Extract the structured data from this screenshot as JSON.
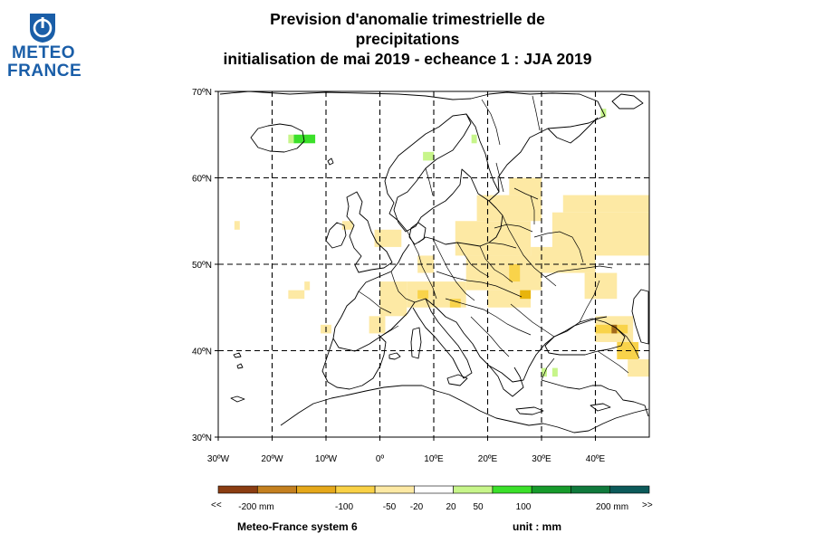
{
  "logo": {
    "line1": "METEO",
    "line2": "FRANCE",
    "icon": "meteo-france-logo-icon"
  },
  "title": {
    "line1": "Prevision d'anomalie trimestrielle de",
    "line2": "precipitations",
    "line3": "initialisation de mai 2019  -  echeance 1 : JJA 2019"
  },
  "map": {
    "lon_range": [
      -30,
      50
    ],
    "lat_range": [
      30,
      70
    ],
    "grid_lon": [
      -20,
      -10,
      0,
      10,
      20,
      30,
      40
    ],
    "grid_lat": [
      40,
      50,
      60
    ],
    "x_ticks": [
      "30ºW",
      "20ºW",
      "10ºW",
      "0º",
      "10ºE",
      "20ºE",
      "30ºE",
      "40ºE"
    ],
    "y_ticks": [
      "70ºN",
      "60ºN",
      "50ºN",
      "40ºN",
      "30ºN"
    ],
    "colors": {
      "light_yellow": "#fde9a4",
      "yellow": "#f9d34a",
      "gold": "#e8b40c",
      "brown": "#a36b1b",
      "light_green": "#c7f58a",
      "green": "#3be02a"
    },
    "anomaly_boxes": [
      {
        "lon": [
          -16,
          -12
        ],
        "lat": [
          64,
          65
        ],
        "level": "green"
      },
      {
        "lon": [
          -17,
          -16
        ],
        "lat": [
          64,
          65
        ],
        "level": "light_green"
      },
      {
        "lon": [
          8,
          10
        ],
        "lat": [
          62,
          63
        ],
        "level": "light_green"
      },
      {
        "lon": [
          17,
          18
        ],
        "lat": [
          64,
          65
        ],
        "level": "light_green"
      },
      {
        "lon": [
          41,
          42
        ],
        "lat": [
          67,
          68
        ],
        "level": "light_green"
      },
      {
        "lon": [
          30,
          31
        ],
        "lat": [
          37,
          38
        ],
        "level": "light_green"
      },
      {
        "lon": [
          32,
          33
        ],
        "lat": [
          37,
          38
        ],
        "level": "light_green"
      },
      {
        "lon": [
          14,
          28
        ],
        "lat": [
          51,
          55
        ],
        "level": "light_yellow"
      },
      {
        "lon": [
          18,
          30
        ],
        "lat": [
          55,
          58
        ],
        "level": "light_yellow"
      },
      {
        "lon": [
          24,
          30
        ],
        "lat": [
          58,
          60
        ],
        "level": "light_yellow"
      },
      {
        "lon": [
          32,
          50
        ],
        "lat": [
          51,
          56
        ],
        "level": "light_yellow"
      },
      {
        "lon": [
          34,
          50
        ],
        "lat": [
          56,
          58
        ],
        "level": "light_yellow"
      },
      {
        "lon": [
          28,
          40
        ],
        "lat": [
          49,
          52
        ],
        "level": "light_yellow"
      },
      {
        "lon": [
          38,
          44
        ],
        "lat": [
          46,
          49
        ],
        "level": "light_yellow"
      },
      {
        "lon": [
          16,
          30
        ],
        "lat": [
          47,
          51
        ],
        "level": "light_yellow"
      },
      {
        "lon": [
          20,
          28
        ],
        "lat": [
          45,
          47
        ],
        "level": "light_yellow"
      },
      {
        "lon": [
          24,
          26
        ],
        "lat": [
          48,
          50
        ],
        "level": "yellow"
      },
      {
        "lon": [
          26,
          28
        ],
        "lat": [
          46,
          47
        ],
        "level": "gold"
      },
      {
        "lon": [
          0,
          5
        ],
        "lat": [
          44,
          48
        ],
        "level": "light_yellow"
      },
      {
        "lon": [
          5,
          16
        ],
        "lat": [
          45,
          48
        ],
        "level": "light_yellow"
      },
      {
        "lon": [
          7,
          9
        ],
        "lat": [
          46,
          47
        ],
        "level": "yellow"
      },
      {
        "lon": [
          13,
          15
        ],
        "lat": [
          45,
          46
        ],
        "level": "yellow"
      },
      {
        "lon": [
          -1,
          4
        ],
        "lat": [
          52,
          54
        ],
        "level": "light_yellow"
      },
      {
        "lon": [
          7,
          10
        ],
        "lat": [
          49,
          51
        ],
        "level": "light_yellow"
      },
      {
        "lon": [
          -2,
          1
        ],
        "lat": [
          42,
          44
        ],
        "level": "light_yellow"
      },
      {
        "lon": [
          -11,
          -9
        ],
        "lat": [
          42,
          43
        ],
        "level": "light_yellow"
      },
      {
        "lon": [
          -17,
          -14
        ],
        "lat": [
          46,
          47
        ],
        "level": "light_yellow"
      },
      {
        "lon": [
          -14,
          -13
        ],
        "lat": [
          47,
          48
        ],
        "level": "light_yellow"
      },
      {
        "lon": [
          -27,
          -26
        ],
        "lat": [
          54,
          55
        ],
        "level": "light_yellow"
      },
      {
        "lon": [
          -7,
          -5
        ],
        "lat": [
          54,
          55
        ],
        "level": "light_yellow"
      },
      {
        "lon": [
          40,
          47
        ],
        "lat": [
          41,
          44
        ],
        "level": "light_yellow"
      },
      {
        "lon": [
          40,
          46
        ],
        "lat": [
          42,
          43
        ],
        "level": "yellow"
      },
      {
        "lon": [
          43,
          44
        ],
        "lat": [
          42,
          43
        ],
        "level": "brown"
      },
      {
        "lon": [
          44,
          48
        ],
        "lat": [
          39,
          41
        ],
        "level": "yellow"
      },
      {
        "lon": [
          46,
          50
        ],
        "lat": [
          37,
          39
        ],
        "level": "light_yellow"
      }
    ]
  },
  "legend": {
    "colors": [
      "#8b3d12",
      "#c4801f",
      "#e5a81a",
      "#f9d146",
      "#fde9a4",
      "#ffffff",
      "#c7f58a",
      "#3be02a",
      "#179b2c",
      "#107a3c",
      "#0c5a5a"
    ],
    "ticks": [
      "-200 mm",
      "-100",
      "-50",
      "-20",
      "20",
      "50",
      "100",
      "200 mm"
    ],
    "less_symbol": "<<",
    "more_symbol": ">>",
    "footer_left": "Meteo-France system 6",
    "footer_right": "unit :  mm"
  }
}
